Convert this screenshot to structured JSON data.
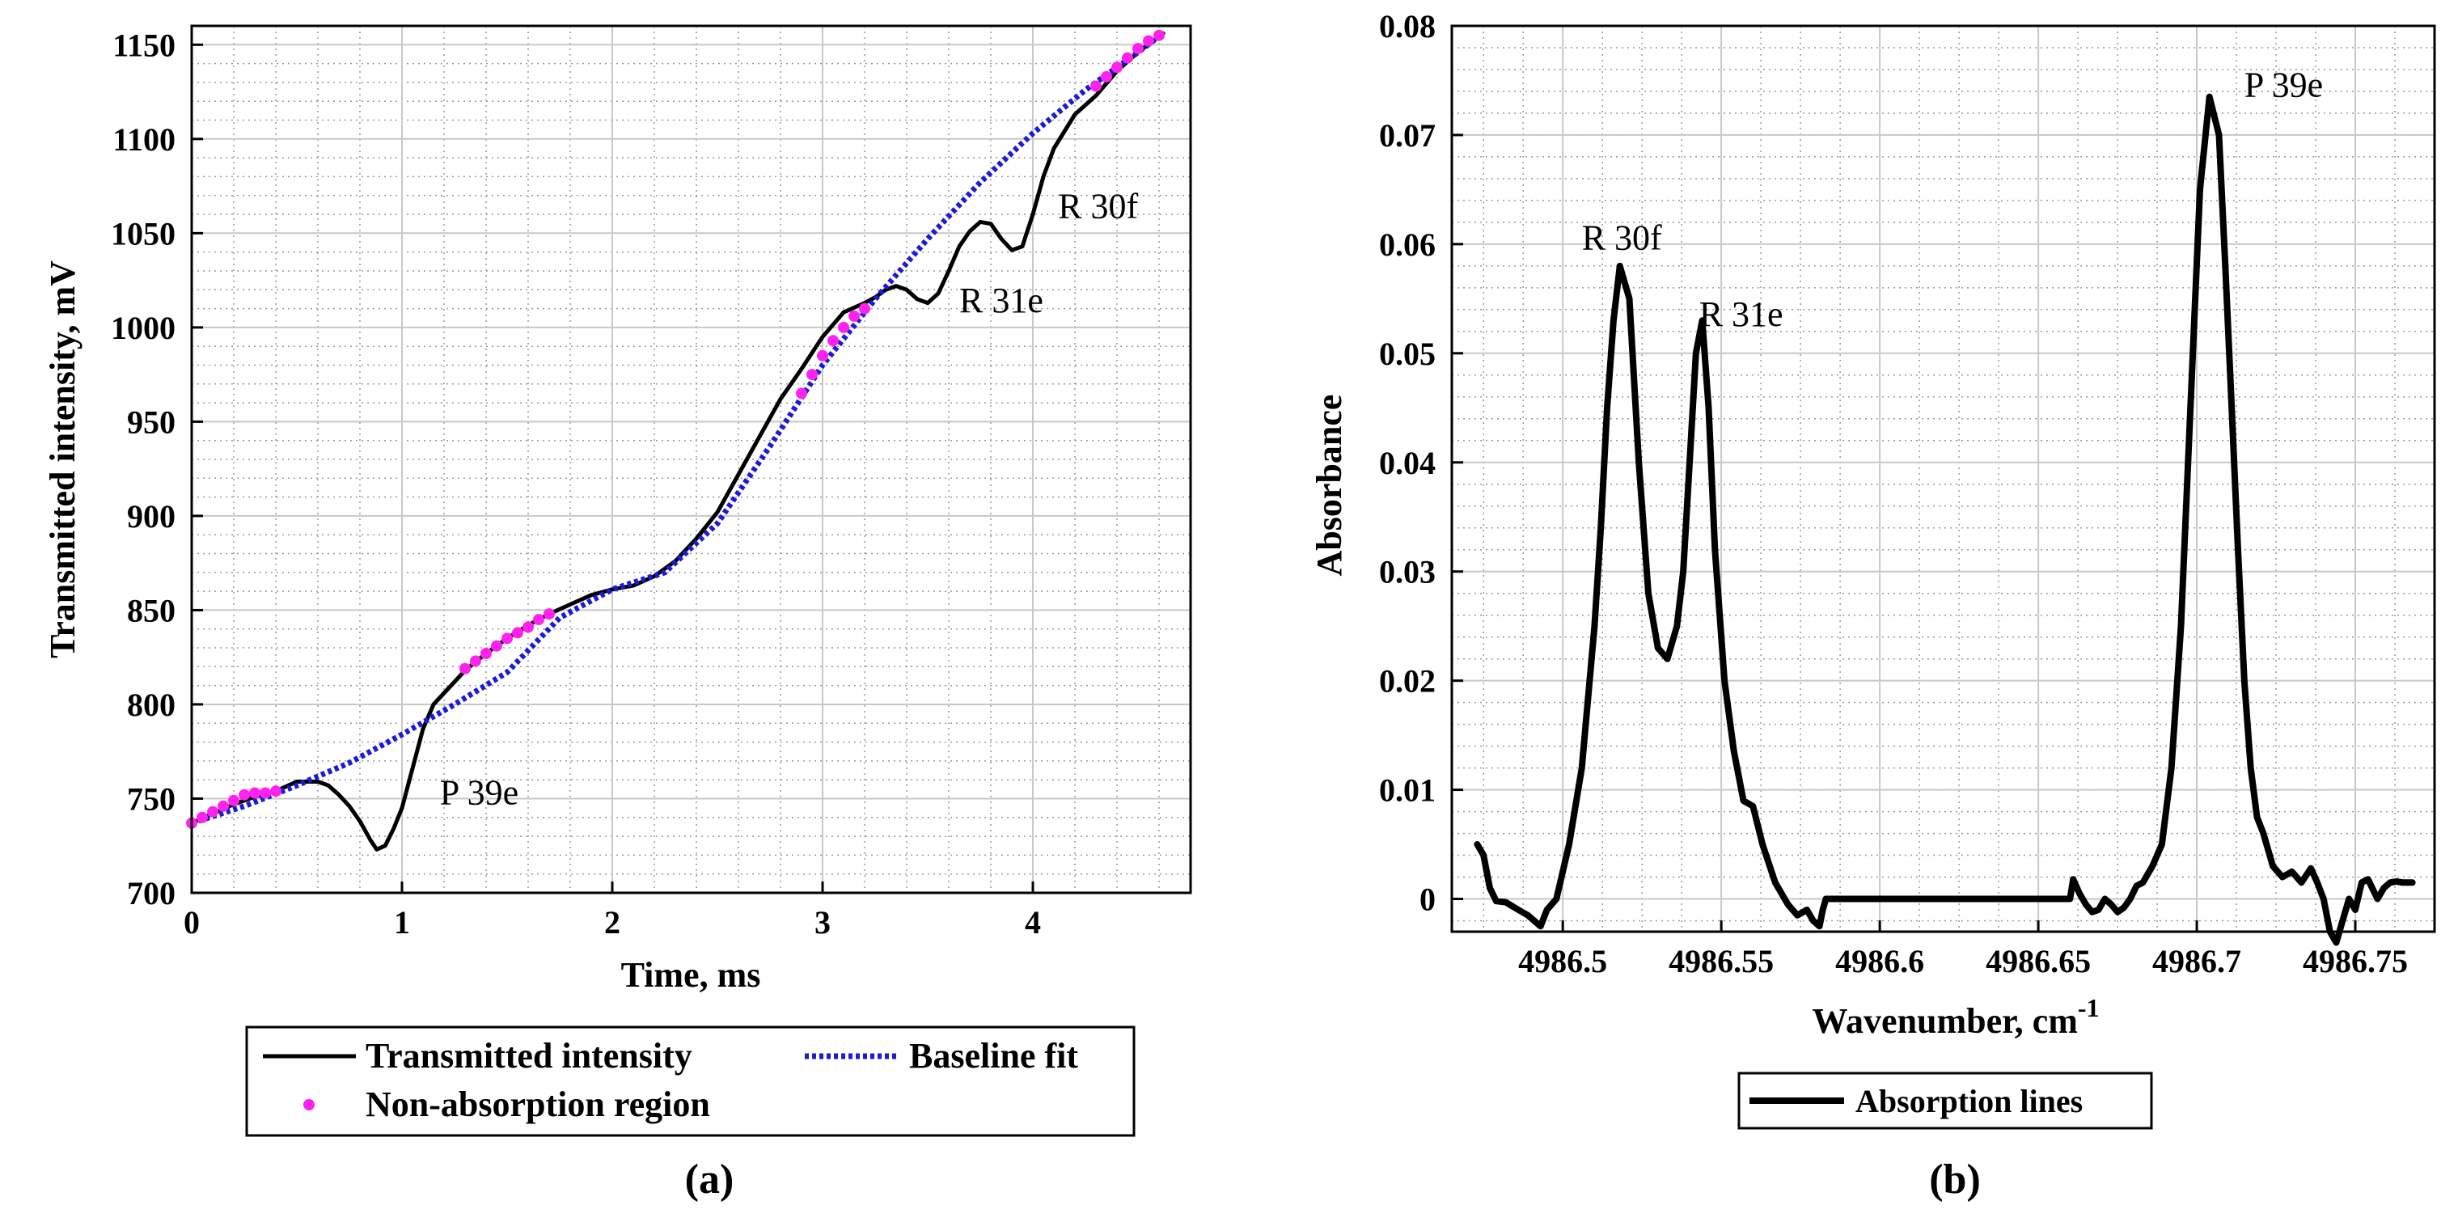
{
  "chart_data": [
    {
      "type": "line",
      "panel_label": "(a)",
      "xlabel": "Time, ms",
      "ylabel": "Transmitted intensity, mV",
      "xlim": [
        0,
        4.75
      ],
      "ylim": [
        700,
        1160
      ],
      "grid": true,
      "xticks": [
        {
          "value": 0,
          "label": "0"
        },
        {
          "value": 1,
          "label": "1"
        },
        {
          "value": 2,
          "label": "2"
        },
        {
          "value": 3,
          "label": "3"
        },
        {
          "value": 4,
          "label": "4"
        }
      ],
      "yticks": [
        {
          "value": 700,
          "label": "700"
        },
        {
          "value": 750,
          "label": "750"
        },
        {
          "value": 800,
          "label": "800"
        },
        {
          "value": 850,
          "label": "850"
        },
        {
          "value": 900,
          "label": "900"
        },
        {
          "value": 950,
          "label": "950"
        },
        {
          "value": 1000,
          "label": "1000"
        },
        {
          "value": 1050,
          "label": "1050"
        },
        {
          "value": 1100,
          "label": "1100"
        },
        {
          "value": 1150,
          "label": "1150"
        }
      ],
      "series": [
        {
          "name": "Transmitted intensity",
          "style": "solid",
          "color": "#000000",
          "x": [
            0,
            0.1,
            0.2,
            0.3,
            0.4,
            0.5,
            0.6,
            0.65,
            0.7,
            0.75,
            0.8,
            0.85,
            0.88,
            0.92,
            0.96,
            1.0,
            1.05,
            1.1,
            1.15,
            1.2,
            1.3,
            1.4,
            1.5,
            1.6,
            1.7,
            1.8,
            1.9,
            2.0,
            2.1,
            2.2,
            2.3,
            2.4,
            2.5,
            2.6,
            2.7,
            2.8,
            2.9,
            3.0,
            3.1,
            3.2,
            3.25,
            3.3,
            3.35,
            3.4,
            3.45,
            3.5,
            3.55,
            3.6,
            3.65,
            3.7,
            3.75,
            3.8,
            3.85,
            3.9,
            3.95,
            4.0,
            4.05,
            4.1,
            4.15,
            4.2,
            4.3,
            4.4,
            4.5,
            4.62
          ],
          "y": [
            737,
            742,
            747,
            751,
            754,
            759,
            759,
            757,
            752,
            746,
            738,
            728,
            723,
            725,
            734,
            745,
            766,
            787,
            800,
            806,
            818,
            827,
            835,
            842,
            848,
            853,
            858,
            861,
            863,
            868,
            876,
            888,
            902,
            922,
            942,
            962,
            978,
            995,
            1008,
            1013,
            1016,
            1020,
            1022,
            1020,
            1015,
            1013,
            1018,
            1030,
            1043,
            1051,
            1056,
            1055,
            1047,
            1041,
            1043,
            1060,
            1080,
            1095,
            1104,
            1113,
            1123,
            1136,
            1146,
            1156
          ]
        },
        {
          "name": "Baseline fit",
          "style": "dotted",
          "color": "#1a1ad8",
          "x": [
            0,
            0.25,
            0.5,
            0.75,
            1.0,
            1.25,
            1.5,
            1.75,
            2.0,
            2.25,
            2.5,
            2.75,
            3.0,
            3.25,
            3.5,
            3.75,
            4.0,
            4.25,
            4.5,
            4.62
          ],
          "y": [
            737,
            746,
            757,
            769,
            784,
            800,
            817,
            846,
            861,
            870,
            896,
            937,
            980,
            1015,
            1047,
            1077,
            1103,
            1126,
            1146,
            1156
          ]
        },
        {
          "name": "Non-absorption region",
          "style": "markers",
          "color": "#ff22ee",
          "segments": [
            {
              "x": [
                0,
                0.05,
                0.1,
                0.15,
                0.2,
                0.25,
                0.3,
                0.35,
                0.4
              ],
              "y": [
                737,
                740,
                743,
                746,
                749,
                752,
                753,
                753,
                754
              ]
            },
            {
              "x": [
                1.3,
                1.35,
                1.4,
                1.45,
                1.5,
                1.55,
                1.6,
                1.65,
                1.7
              ],
              "y": [
                819,
                823,
                827,
                831,
                835,
                838,
                841,
                845,
                848
              ]
            },
            {
              "x": [
                2.9,
                2.95,
                3.0,
                3.05,
                3.1,
                3.15,
                3.2
              ],
              "y": [
                965,
                975,
                985,
                993,
                1000,
                1006,
                1010
              ]
            },
            {
              "x": [
                4.3,
                4.35,
                4.4,
                4.45,
                4.5,
                4.55,
                4.6
              ],
              "y": [
                1128,
                1133,
                1138,
                1143,
                1148,
                1152,
                1155
              ]
            }
          ]
        }
      ],
      "annotations": [
        {
          "text": "P 39e",
          "x": 1.18,
          "y": 747
        },
        {
          "text": "R 31e",
          "x": 3.65,
          "y": 1008
        },
        {
          "text": "R 30f",
          "x": 4.12,
          "y": 1058
        }
      ],
      "legend": {
        "placement": "below",
        "entries": [
          "Transmitted intensity",
          "Baseline fit",
          "Non-absorption region"
        ]
      }
    },
    {
      "type": "line",
      "panel_label": "(b)",
      "xlabel": "Wavenumber, cm",
      "xlabel_sup": "-1",
      "ylabel": "Absorbance",
      "xlim": [
        4986.465,
        4986.775
      ],
      "ylim": [
        -0.003,
        0.08
      ],
      "grid": true,
      "xticks": [
        {
          "value": 4986.5,
          "label": "4986.5"
        },
        {
          "value": 4986.55,
          "label": "4986.55"
        },
        {
          "value": 4986.6,
          "label": "4986.6"
        },
        {
          "value": 4986.65,
          "label": "4986.65"
        },
        {
          "value": 4986.7,
          "label": "4986.7"
        },
        {
          "value": 4986.75,
          "label": "4986.75"
        }
      ],
      "yticks": [
        {
          "value": 0,
          "label": "0"
        },
        {
          "value": 0.01,
          "label": "0.01"
        },
        {
          "value": 0.02,
          "label": "0.02"
        },
        {
          "value": 0.03,
          "label": "0.03"
        },
        {
          "value": 0.04,
          "label": "0.04"
        },
        {
          "value": 0.05,
          "label": "0.05"
        },
        {
          "value": 0.06,
          "label": "0.06"
        },
        {
          "value": 0.07,
          "label": "0.07"
        },
        {
          "value": 0.08,
          "label": "0.08"
        }
      ],
      "series": [
        {
          "name": "Absorption lines",
          "style": "solid",
          "color": "#000000",
          "x": [
            4986.473,
            4986.475,
            4986.477,
            4986.479,
            4986.482,
            4986.486,
            4986.489,
            4986.493,
            4986.495,
            4986.498,
            4986.502,
            4986.506,
            4986.51,
            4986.512,
            4986.514,
            4986.516,
            4986.518,
            4986.521,
            4986.524,
            4986.527,
            4986.53,
            4986.533,
            4986.536,
            4986.538,
            4986.54,
            4986.542,
            4986.544,
            4986.546,
            4986.548,
            4986.551,
            4986.554,
            4986.557,
            4986.56,
            4986.563,
            4986.567,
            4986.571,
            4986.574,
            4986.577,
            4986.579,
            4986.581,
            4986.582,
            4986.583,
            4986.59,
            4986.62,
            4986.66,
            4986.661,
            4986.663,
            4986.665,
            4986.667,
            4986.669,
            4986.671,
            4986.673,
            4986.675,
            4986.677,
            4986.679,
            4986.681,
            4986.683,
            4986.686,
            4986.689,
            4986.692,
            4986.695,
            4986.698,
            4986.701,
            4986.704,
            4986.707,
            4986.709,
            4986.711,
            4986.713,
            4986.715,
            4986.717,
            4986.719,
            4986.721,
            4986.724,
            4986.727,
            4986.73,
            4986.733,
            4986.736,
            4986.738,
            4986.74,
            4986.742,
            4986.744,
            4986.746,
            4986.747,
            4986.748,
            4986.75,
            4986.752,
            4986.754,
            4986.757,
            4986.759,
            4986.761,
            4986.763,
            4986.765,
            4986.768
          ],
          "y": [
            0.005,
            0.004,
            0.001,
            -0.0002,
            -0.0003,
            -0.001,
            -0.0015,
            -0.0025,
            -0.001,
            0.0,
            0.005,
            0.012,
            0.025,
            0.034,
            0.045,
            0.053,
            0.058,
            0.055,
            0.04,
            0.028,
            0.023,
            0.022,
            0.025,
            0.03,
            0.04,
            0.05,
            0.053,
            0.045,
            0.032,
            0.02,
            0.0135,
            0.009,
            0.0085,
            0.005,
            0.0015,
            -0.0005,
            -0.0015,
            -0.001,
            -0.002,
            -0.0025,
            -0.001,
            0.0,
            0.0,
            0.0,
            0.0,
            0.0018,
            0.0005,
            -0.0005,
            -0.0012,
            -0.001,
            0.0,
            -0.0005,
            -0.0012,
            -0.0008,
            0.0,
            0.0012,
            0.0015,
            0.003,
            0.005,
            0.012,
            0.025,
            0.045,
            0.065,
            0.0735,
            0.07,
            0.058,
            0.045,
            0.032,
            0.02,
            0.012,
            0.0075,
            0.006,
            0.003,
            0.002,
            0.0025,
            0.0015,
            0.0028,
            0.0015,
            0.0,
            -0.003,
            -0.004,
            -0.002,
            -0.001,
            0.0,
            -0.001,
            0.0015,
            0.0018,
            0.0,
            0.001,
            0.0015,
            0.0016,
            0.0015,
            0.0015
          ]
        }
      ],
      "annotations": [
        {
          "text": "R 30f",
          "x": 4986.506,
          "y": 0.0595
        },
        {
          "text": "R 31e",
          "x": 4986.543,
          "y": 0.0525
        },
        {
          "text": "P 39e",
          "x": 4986.715,
          "y": 0.0735
        }
      ],
      "legend": {
        "placement": "below",
        "entries": [
          "Absorption lines"
        ]
      }
    }
  ]
}
